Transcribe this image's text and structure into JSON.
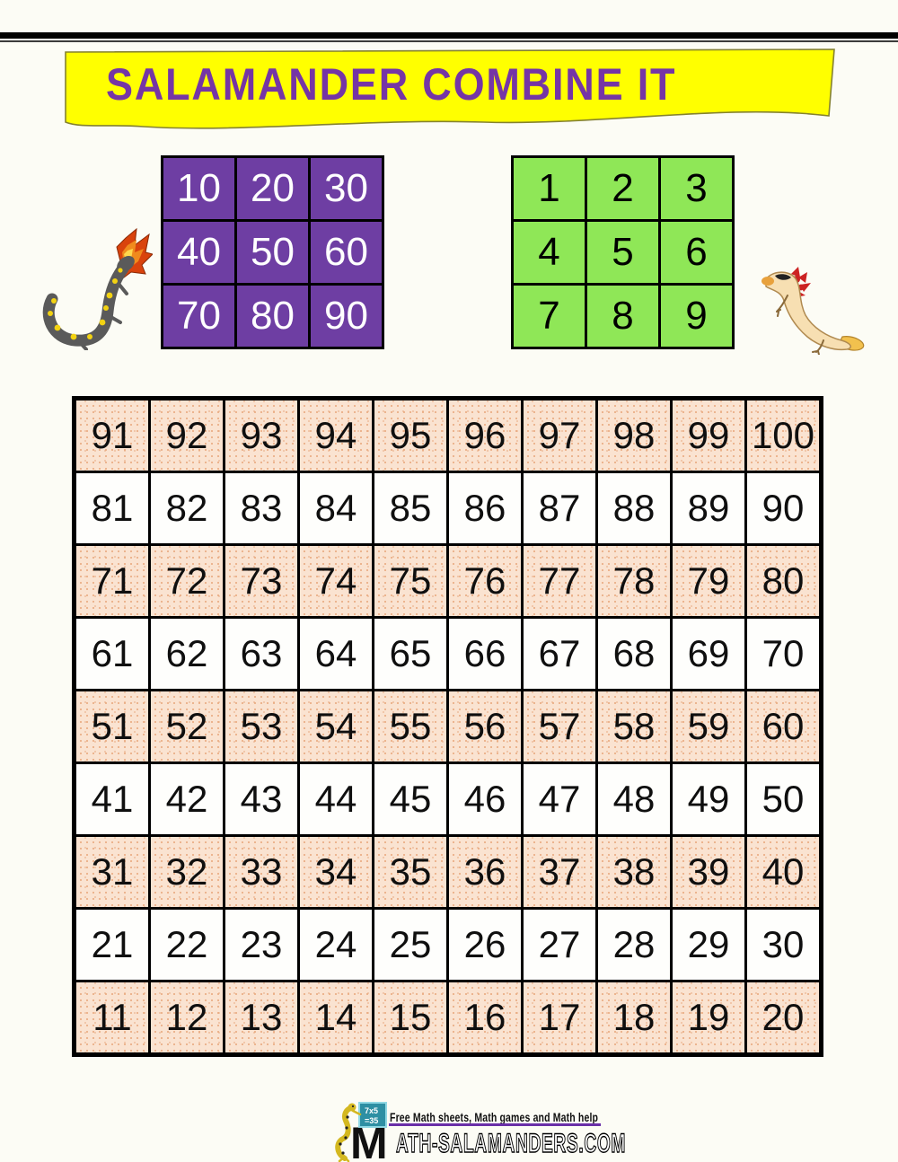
{
  "header": {
    "title": "SALAMANDER COMBINE IT"
  },
  "colors": {
    "banner_yellow": "#FFFF00",
    "title_purple": "#7535A5",
    "tens_cell_purple": "#6E3EA3",
    "ones_cell_green": "#8FE757",
    "shaded_row_peach": "#FAE3D1",
    "shaded_dot": "#E9A97E",
    "footer_rule_purple": "#6A2FA8"
  },
  "tens_grid": {
    "rows": [
      [
        "10",
        "20",
        "30"
      ],
      [
        "40",
        "50",
        "60"
      ],
      [
        "70",
        "80",
        "90"
      ]
    ]
  },
  "ones_grid": {
    "rows": [
      [
        "1",
        "2",
        "3"
      ],
      [
        "4",
        "5",
        "6"
      ],
      [
        "7",
        "8",
        "9"
      ]
    ]
  },
  "hundred_grid": {
    "rows": [
      {
        "shaded": true,
        "cells": [
          "91",
          "92",
          "93",
          "94",
          "95",
          "96",
          "97",
          "98",
          "99",
          "100"
        ]
      },
      {
        "shaded": false,
        "cells": [
          "81",
          "82",
          "83",
          "84",
          "85",
          "86",
          "87",
          "88",
          "89",
          "90"
        ]
      },
      {
        "shaded": true,
        "cells": [
          "71",
          "72",
          "73",
          "74",
          "75",
          "76",
          "77",
          "78",
          "79",
          "80"
        ]
      },
      {
        "shaded": false,
        "cells": [
          "61",
          "62",
          "63",
          "64",
          "65",
          "66",
          "67",
          "68",
          "69",
          "70"
        ]
      },
      {
        "shaded": true,
        "cells": [
          "51",
          "52",
          "53",
          "54",
          "55",
          "56",
          "57",
          "58",
          "59",
          "60"
        ]
      },
      {
        "shaded": false,
        "cells": [
          "41",
          "42",
          "43",
          "44",
          "45",
          "46",
          "47",
          "48",
          "49",
          "50"
        ]
      },
      {
        "shaded": true,
        "cells": [
          "31",
          "32",
          "33",
          "34",
          "35",
          "36",
          "37",
          "38",
          "39",
          "40"
        ]
      },
      {
        "shaded": false,
        "cells": [
          "21",
          "22",
          "23",
          "24",
          "25",
          "26",
          "27",
          "28",
          "29",
          "30"
        ]
      },
      {
        "shaded": true,
        "cells": [
          "11",
          "12",
          "13",
          "14",
          "15",
          "16",
          "17",
          "18",
          "19",
          "20"
        ]
      }
    ]
  },
  "images": {
    "left_image": "fire-breathing-salamander",
    "right_image": "axolotl-salamander",
    "logo_image": "salamander-at-easel"
  },
  "footer": {
    "tagline": "Free Math sheets, Math games and Math help",
    "board_line1": "7x5",
    "board_line2": "=35",
    "site_first_letter": "M",
    "site_rest": "ATH-SALAMANDERS.COM"
  }
}
